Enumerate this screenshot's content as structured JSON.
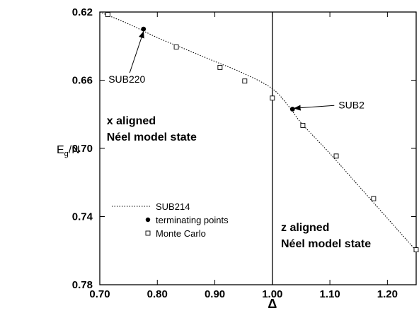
{
  "chart_data": {
    "type": "line",
    "xlabel": "Δ",
    "ylabel_main": "E",
    "ylabel_sub": "g",
    "ylabel_tail": "/N",
    "xlim": [
      0.7,
      1.25
    ],
    "ylim": [
      0.62,
      0.78
    ],
    "y_inverted": true,
    "x_ticks": [
      0.7,
      0.8,
      0.9,
      1.0,
      1.1,
      1.2
    ],
    "x_tick_labels": [
      "0.70",
      "0.80",
      "0.90",
      "1.00",
      "1.10",
      "1.20"
    ],
    "y_ticks": [
      0.62,
      0.66,
      0.7,
      0.74,
      0.78
    ],
    "y_tick_labels": [
      "0.62",
      "0.66",
      "0.70",
      "0.74",
      "0.78"
    ],
    "grid": false,
    "legend_position": "bottom-left",
    "vertical_line_x": 1.0,
    "series": [
      {
        "name": "SUB214",
        "style": "dotted-line",
        "x": [
          0.7,
          0.75,
          0.8,
          0.85,
          0.9,
          0.95,
          1.0,
          1.03,
          1.05,
          1.1,
          1.15,
          1.2,
          1.25
        ],
        "y": [
          0.62,
          0.627,
          0.635,
          0.642,
          0.649,
          0.656,
          0.665,
          0.676,
          0.685,
          0.703,
          0.722,
          0.741,
          0.76
        ]
      },
      {
        "name": "terminating points",
        "style": "filled-circle",
        "x": [
          0.776,
          1.035
        ],
        "y": [
          0.63,
          0.677
        ]
      },
      {
        "name": "Monte Carlo",
        "style": "open-square",
        "x": [
          0.714,
          0.833,
          0.909,
          0.952,
          1.0,
          1.053,
          1.111,
          1.176,
          1.25
        ],
        "y": [
          0.6215,
          0.6405,
          0.6525,
          0.6605,
          0.6705,
          0.6865,
          0.7045,
          0.7295,
          0.7595
        ]
      }
    ],
    "annotations": [
      {
        "text": "SUB220",
        "x": 0.715,
        "y": 0.6615,
        "arrow_to": [
          0.776,
          0.6315
        ]
      },
      {
        "text": "SUB2",
        "x": 1.115,
        "y": 0.6765,
        "arrow_to": [
          1.038,
          0.6765
        ]
      }
    ],
    "region_labels": [
      {
        "line1": "x aligned",
        "line2": "Néel model state",
        "x": 0.712,
        "y": 0.686
      },
      {
        "line1": "z aligned",
        "line2": "Néel model  state",
        "x": 1.015,
        "y": 0.7485
      }
    ]
  }
}
